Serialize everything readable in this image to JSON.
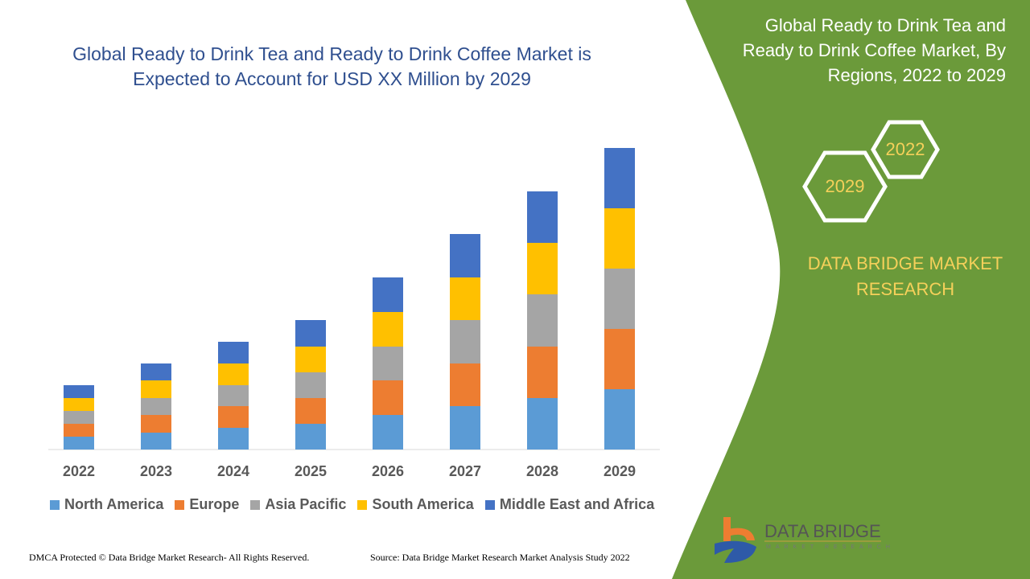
{
  "title": "Global Ready to Drink Tea and Ready to Drink Coffee Market is Expected to Account for USD XX Million by 2029",
  "side_title": "Global Ready to Drink Tea and Ready to Drink Coffee Market, By Regions, 2022 to 2029",
  "hex_labels": [
    "2022",
    "2029"
  ],
  "brand": "DATA BRIDGE MARKET RESEARCH",
  "logo": {
    "name": "DATA BRIDGE",
    "tagline": "MARKET RESEARCH"
  },
  "footer": {
    "left": "DMCA Protected © Data Bridge Market Research- All Rights Reserved.",
    "right": "Source: Data Bridge Market Research Market Analysis Study 2022"
  },
  "colors": {
    "panel": "#6b9a3a",
    "title": "#2f4f8f",
    "accent": "#f5d05a"
  },
  "chart_data": {
    "type": "bar",
    "stacked": true,
    "categories": [
      "2022",
      "2023",
      "2024",
      "2025",
      "2026",
      "2027",
      "2028",
      "2029"
    ],
    "series": [
      {
        "name": "North America",
        "color": "#5b9bd5",
        "values": [
          16,
          21,
          27,
          32,
          43,
          54,
          64,
          75
        ]
      },
      {
        "name": "Europe",
        "color": "#ed7d31",
        "values": [
          16,
          22,
          27,
          32,
          43,
          53,
          64,
          75
        ]
      },
      {
        "name": "Asia Pacific",
        "color": "#a5a5a5",
        "values": [
          16,
          21,
          26,
          32,
          42,
          54,
          65,
          75
        ]
      },
      {
        "name": "South America",
        "color": "#ffc000",
        "values": [
          16,
          22,
          27,
          32,
          43,
          53,
          64,
          75
        ]
      },
      {
        "name": "Middle East and Africa",
        "color": "#4472c4",
        "values": [
          16,
          21,
          27,
          33,
          43,
          54,
          64,
          75
        ]
      }
    ],
    "legend": "bottom",
    "grid": false,
    "y_axis_visible": false
  }
}
